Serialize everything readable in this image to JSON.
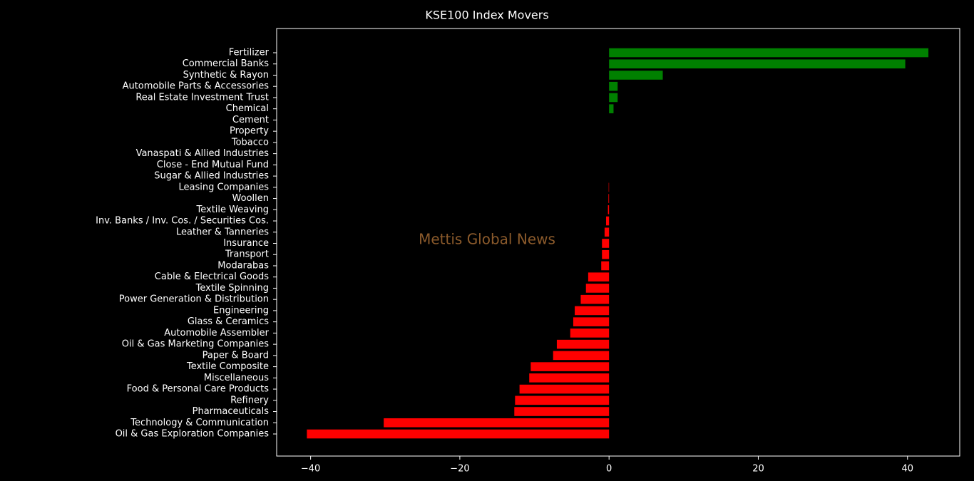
{
  "chart_data": {
    "type": "barh",
    "title": "KSE100 Index Movers",
    "watermark": "Mettis Global News",
    "categories": [
      "Fertilizer",
      "Commercial Banks",
      "Synthetic & Rayon",
      "Automobile Parts & Accessories",
      "Real Estate Investment Trust",
      "Chemical",
      "Cement",
      "Property",
      "Tobacco",
      "Vanaspati & Allied Industries",
      "Close - End Mutual Fund",
      "Sugar & Allied Industries",
      "Leasing Companies",
      "Woollen",
      "Textile Weaving",
      "Inv. Banks / Inv. Cos. / Securities Cos.",
      "Leather & Tanneries",
      "Insurance",
      "Transport",
      "Modarabas",
      "Cable & Electrical Goods",
      "Textile Spinning",
      "Power Generation & Distribution",
      "Engineering",
      "Glass & Ceramics",
      "Automobile Assembler",
      "Oil & Gas Marketing Companies",
      "Paper & Board",
      "Textile Composite",
      "Miscellaneous",
      "Food & Personal Care Products",
      "Refinery",
      "Pharmaceuticals",
      "Technology & Communication",
      "Oil & Gas Exploration Companies"
    ],
    "values": [
      42.8,
      39.7,
      7.2,
      1.15,
      1.15,
      0.6,
      0,
      0,
      0,
      0,
      0,
      0,
      -0.05,
      -0.08,
      -0.15,
      -0.4,
      -0.6,
      -0.95,
      -0.95,
      -1.05,
      -2.8,
      -3.1,
      -3.8,
      -4.6,
      -4.8,
      -5.2,
      -7.0,
      -7.5,
      -10.5,
      -10.7,
      -12.0,
      -12.6,
      -12.7,
      -30.2,
      -40.5
    ],
    "color_positive": "#008000",
    "color_negative": "#ff0000",
    "xlim": [
      -44.55,
      47.0
    ],
    "xticks": [
      {
        "value": -40,
        "label": "−40"
      },
      {
        "value": -20,
        "label": "−20"
      },
      0,
      20,
      40
    ]
  }
}
